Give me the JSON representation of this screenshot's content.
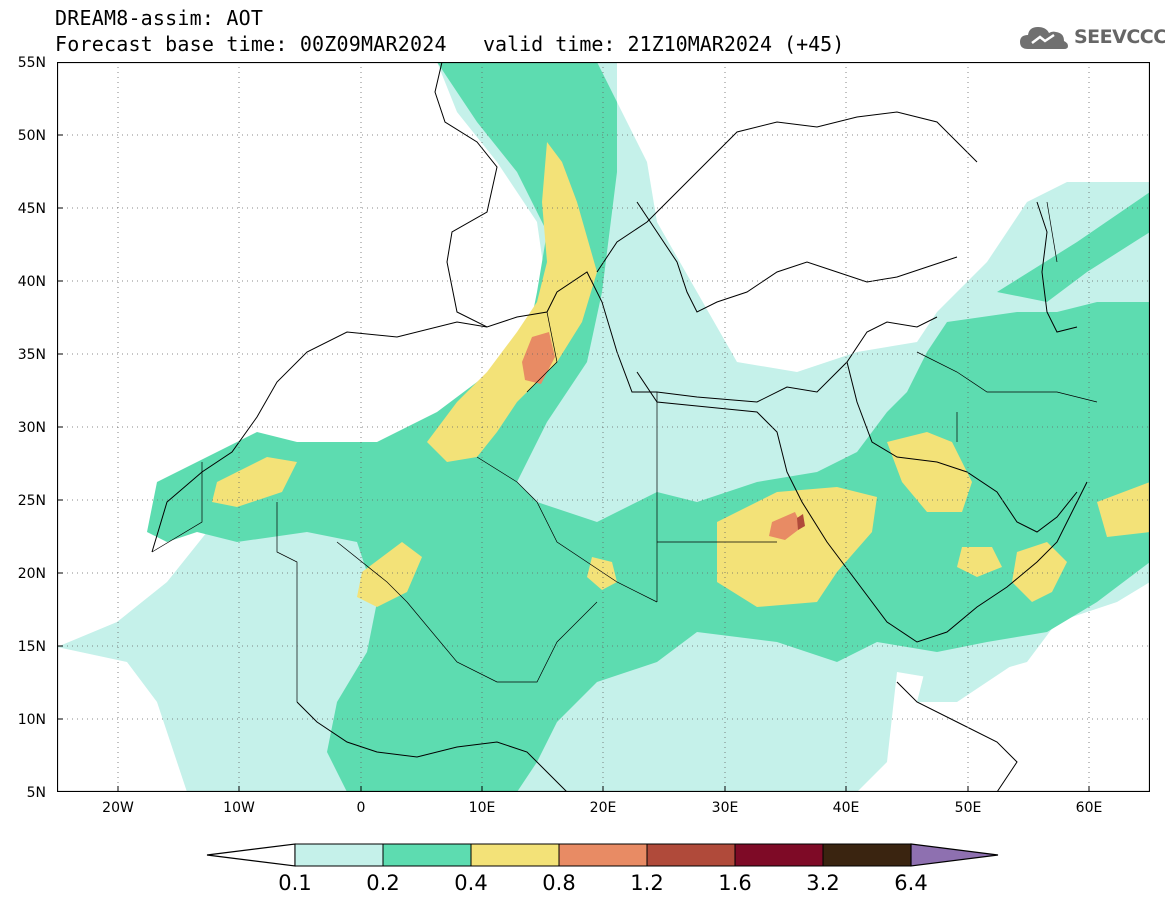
{
  "header": {
    "line1": "DREAM8-assim: AOT",
    "line2": "Forecast base time: 00Z09MAR2024",
    "valid": "valid time: 21Z10MAR2024 (+45)"
  },
  "logo": {
    "text": "SEEVCCC",
    "icon": "cloud-icon"
  },
  "axes": {
    "lat_labels": [
      "55N",
      "50N",
      "45N",
      "40N",
      "35N",
      "30N",
      "25N",
      "20N",
      "15N",
      "10N",
      "5N"
    ],
    "lon_labels": [
      "20W",
      "10W",
      "0",
      "10E",
      "20E",
      "30E",
      "40E",
      "50E",
      "60E"
    ],
    "lat_range": [
      5,
      55
    ],
    "lon_range": [
      -25,
      65
    ],
    "grid": "dotted"
  },
  "colorbar": {
    "labels": [
      "0.1",
      "0.2",
      "0.4",
      "0.8",
      "1.2",
      "1.6",
      "3.2",
      "6.4"
    ],
    "colors": [
      "#c5f1ea",
      "#5ddcb0",
      "#f3e278",
      "#e88b64",
      "#b04a3a",
      "#7e0a26",
      "#3a2410",
      "#8e70b0"
    ],
    "extend": "both"
  },
  "chart_data": {
    "type": "heatmap",
    "variable": "AOT",
    "levels": [
      0.1,
      0.2,
      0.4,
      0.8,
      1.2,
      1.6,
      3.2,
      6.4
    ],
    "plumes": [
      {
        "level": 0.4,
        "lon": 13.5,
        "lat": 40.0
      },
      {
        "level": 0.8,
        "lon": 14.5,
        "lat": 35.0
      },
      {
        "level": 0.8,
        "lon": 35.5,
        "lat": 23.0
      },
      {
        "level": 0.4,
        "lon": 35.0,
        "lat": 21.5
      },
      {
        "level": 0.4,
        "lon": 3.0,
        "lat": 20.5
      },
      {
        "level": 0.4,
        "lon": 8.0,
        "lat": 30.0
      },
      {
        "level": 0.4,
        "lon": -12.0,
        "lat": 26.0
      },
      {
        "level": 0.4,
        "lon": 48.0,
        "lat": 27.0
      },
      {
        "level": 0.4,
        "lon": 55.5,
        "lat": 20.5
      },
      {
        "level": 0.4,
        "lon": 63.0,
        "lat": 24.0
      }
    ]
  }
}
